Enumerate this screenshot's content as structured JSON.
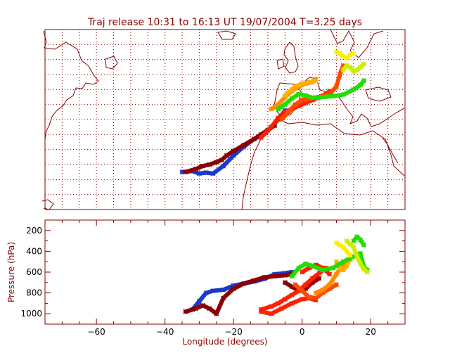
{
  "title": "Traj release 10:31 to 16:13 UT 19/07/2004     T=3.25 days",
  "colors": {
    "frame": "#8b0000",
    "dark_red": "#8b0000",
    "red": "#ff2000",
    "orange_red": "#ff4a00",
    "orange": "#ff8c00",
    "amber": "#ffb000",
    "yellow": "#ffee00",
    "yellow_green": "#ccee00",
    "green": "#22dd00",
    "blue": "#1a3acc",
    "background": "#ffffff"
  },
  "chart_data": [
    {
      "type": "scatter",
      "subtype": "trajectory-map",
      "title": "Traj release 10:31 to 16:13 UT 19/07/2004     T=3.25 days",
      "xlim": [
        -75,
        30
      ],
      "ylim": [
        10,
        70
      ],
      "grid": true,
      "series": [
        {
          "color_key": "blue",
          "x": [
            -35,
            -32,
            -30,
            -28,
            -26,
            -23,
            -20,
            -17,
            -14,
            -11,
            -9,
            -7,
            -5
          ],
          "y": [
            22.5,
            22.8,
            22.0,
            22.3,
            22.0,
            24.5,
            28.0,
            31.0,
            33.5,
            35.5,
            37.5,
            40.0,
            43.0
          ]
        },
        {
          "color_key": "dark_red",
          "x": [
            -34,
            -31,
            -29,
            -27,
            -25,
            -23.5,
            -22,
            -20,
            -17,
            -14,
            -12,
            -10,
            -8
          ],
          "y": [
            22.5,
            23.5,
            24.5,
            25.0,
            25.8,
            26.5,
            28.0,
            29.5,
            31.5,
            33.5,
            35.0,
            36.5,
            38.0
          ]
        },
        {
          "color_key": "red",
          "x": [
            -12,
            -9,
            -7,
            -5,
            -3,
            -1,
            1,
            3,
            5,
            7,
            8
          ],
          "y": [
            34.0,
            37.5,
            40.5,
            42.5,
            43.5,
            44.5,
            45.5,
            46.5,
            47.5,
            48.5,
            49.5
          ]
        },
        {
          "color_key": "orange_red",
          "x": [
            -6,
            -4,
            -2,
            0,
            2,
            5,
            8,
            10,
            11,
            12
          ],
          "y": [
            40.0,
            42.5,
            45.0,
            46.5,
            47.0,
            47.3,
            48.5,
            51.0,
            55.0,
            58.0
          ]
        },
        {
          "color_key": "orange",
          "x": [
            -9,
            -7,
            -5,
            -3,
            -1,
            1,
            3,
            4
          ],
          "y": [
            43.5,
            45.0,
            47.5,
            49.5,
            51.0,
            52.0,
            52.5,
            53.5
          ]
        },
        {
          "color_key": "amber",
          "x": [
            -5,
            -3,
            -2,
            0,
            2,
            4
          ],
          "y": [
            48.0,
            50.0,
            51.0,
            52.0,
            52.5,
            53.0
          ]
        },
        {
          "color_key": "green",
          "x": [
            -7,
            -5,
            -3,
            -1,
            1,
            3,
            6,
            9,
            12,
            15,
            17,
            18
          ],
          "y": [
            43.5,
            45.0,
            47.0,
            48.5,
            48.0,
            47.3,
            47.5,
            47.8,
            48.3,
            50.0,
            51.5,
            53.0
          ]
        },
        {
          "color_key": "yellow_green",
          "x": [
            12,
            13,
            14,
            15,
            16,
            17,
            18
          ],
          "y": [
            56.5,
            58.0,
            57.5,
            56.0,
            56.5,
            57.5,
            58.5
          ]
        },
        {
          "color_key": "yellow",
          "x": [
            10,
            11,
            12,
            13,
            14,
            15
          ],
          "y": [
            62.5,
            62.0,
            61.0,
            60.5,
            61.5,
            62.0
          ]
        }
      ]
    },
    {
      "type": "scatter",
      "subtype": "trajectory-pressure",
      "xlabel": "Longitude  (degrees)",
      "ylabel": "Pressure  (hPa)",
      "xlim": [
        -75,
        30
      ],
      "ylim": [
        1100,
        100
      ],
      "xticks": [
        -60,
        -40,
        -20,
        0,
        20
      ],
      "xtick_labels": [
        "−60",
        "−40",
        "−20",
        "0",
        "20"
      ],
      "yticks": [
        200,
        400,
        600,
        800,
        1000
      ],
      "series": [
        {
          "color_key": "blue",
          "x": [
            -34,
            -32,
            -30,
            -28,
            -26,
            -23,
            -20,
            -17,
            -14,
            -11,
            -8,
            -5,
            -3
          ],
          "y": [
            980,
            960,
            880,
            800,
            780,
            770,
            730,
            710,
            690,
            665,
            620,
            610,
            600
          ]
        },
        {
          "color_key": "dark_red",
          "x": [
            -34,
            -31,
            -29,
            -27,
            -25,
            -23,
            -20,
            -17,
            -14,
            -11,
            -8,
            -5,
            -3
          ],
          "y": [
            980,
            950,
            920,
            950,
            1000,
            850,
            760,
            710,
            680,
            650,
            640,
            630,
            620
          ]
        },
        {
          "color_key": "dark_red",
          "x": [
            -5,
            -3,
            -1,
            1,
            3,
            5
          ],
          "y": [
            700,
            740,
            780,
            760,
            700,
            660
          ]
        },
        {
          "color_key": "red",
          "x": [
            -12,
            -9,
            -7,
            -5,
            -3,
            -1,
            1,
            3,
            5,
            7
          ],
          "y": [
            960,
            930,
            900,
            860,
            820,
            780,
            720,
            660,
            610,
            560
          ]
        },
        {
          "color_key": "red",
          "x": [
            -12,
            -9,
            -6,
            -3,
            0,
            2,
            4
          ],
          "y": [
            980,
            1000,
            950,
            900,
            860,
            850,
            870
          ]
        },
        {
          "color_key": "red",
          "x": [
            0,
            2,
            4,
            6,
            8
          ],
          "y": [
            600,
            560,
            530,
            560,
            620
          ]
        },
        {
          "color_key": "orange_red",
          "x": [
            -2,
            0,
            2,
            4,
            6,
            8,
            10
          ],
          "y": [
            720,
            780,
            840,
            850,
            800,
            760,
            720
          ]
        },
        {
          "color_key": "orange",
          "x": [
            4,
            6,
            8,
            10,
            12,
            14
          ],
          "y": [
            800,
            770,
            720,
            620,
            520,
            480
          ]
        },
        {
          "color_key": "amber",
          "x": [
            10,
            11,
            12,
            13,
            14
          ],
          "y": [
            500,
            560,
            580,
            540,
            470
          ]
        },
        {
          "color_key": "green",
          "x": [
            -3,
            -1,
            1,
            3,
            6,
            9,
            12,
            15,
            17,
            18,
            19
          ],
          "y": [
            640,
            560,
            520,
            540,
            580,
            560,
            500,
            450,
            420,
            550,
            580
          ]
        },
        {
          "color_key": "green",
          "x": [
            15,
            16,
            17,
            18
          ],
          "y": [
            300,
            260,
            290,
            340
          ]
        },
        {
          "color_key": "yellow",
          "x": [
            10,
            11,
            12,
            13,
            14
          ],
          "y": [
            320,
            340,
            360,
            400,
            440
          ]
        },
        {
          "color_key": "yellow_green",
          "x": [
            13,
            14,
            15,
            16,
            17,
            18,
            19
          ],
          "y": [
            300,
            330,
            360,
            450,
            520,
            570,
            600
          ]
        }
      ]
    }
  ]
}
